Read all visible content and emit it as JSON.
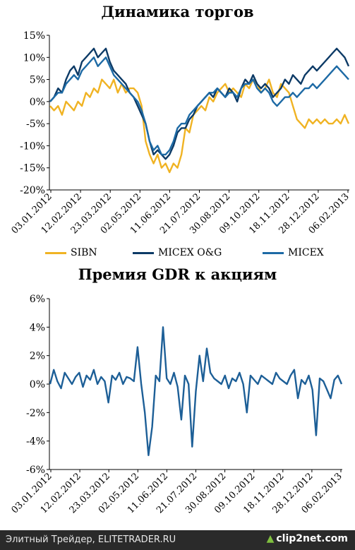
{
  "chart_data": [
    {
      "type": "line",
      "title": "Динамика торгов",
      "ylim": [
        -0.2,
        0.15
      ],
      "yticks": [
        "15%",
        "10%",
        "5%",
        "0%",
        "-5%",
        "-10%",
        "-15%",
        "-20%"
      ],
      "ytick_values": [
        0.15,
        0.1,
        0.05,
        0.0,
        -0.05,
        -0.1,
        -0.15,
        -0.2
      ],
      "xticks": [
        "03.01.2012",
        "12.02.2012",
        "23.03.2012",
        "02.05.2012",
        "11.06.2012",
        "21.07.2012",
        "30.08.2012",
        "09.10.2012",
        "18.11.2012",
        "28.12.2012",
        "06.02.2013"
      ],
      "legend_position": "bottom",
      "grid": false,
      "series": [
        {
          "name": "SIBN",
          "color": "#f0b323",
          "values": [
            -0.01,
            -0.02,
            -0.01,
            -0.03,
            0.0,
            -0.01,
            -0.02,
            0.0,
            -0.01,
            0.02,
            0.01,
            0.03,
            0.02,
            0.05,
            0.04,
            0.03,
            0.05,
            0.02,
            0.04,
            0.02,
            0.03,
            0.03,
            0.02,
            -0.01,
            -0.09,
            -0.12,
            -0.14,
            -0.12,
            -0.15,
            -0.14,
            -0.16,
            -0.14,
            -0.15,
            -0.12,
            -0.06,
            -0.07,
            -0.03,
            -0.02,
            -0.01,
            -0.02,
            0.01,
            0.0,
            0.02,
            0.03,
            0.04,
            0.02,
            0.03,
            0.02,
            0.01,
            0.04,
            0.03,
            0.05,
            0.04,
            0.02,
            0.03,
            0.05,
            0.02,
            0.01,
            0.04,
            0.03,
            0.02,
            -0.01,
            -0.04,
            -0.05,
            -0.06,
            -0.04,
            -0.05,
            -0.04,
            -0.05,
            -0.04,
            -0.05,
            -0.05,
            -0.04,
            -0.05,
            -0.03,
            -0.05
          ]
        },
        {
          "name": "MICEX O&G",
          "color": "#0c3a66",
          "values": [
            0.0,
            0.01,
            0.03,
            0.02,
            0.05,
            0.07,
            0.08,
            0.06,
            0.09,
            0.1,
            0.11,
            0.12,
            0.1,
            0.11,
            0.12,
            0.09,
            0.07,
            0.06,
            0.05,
            0.04,
            0.02,
            0.01,
            -0.01,
            -0.03,
            -0.05,
            -0.09,
            -0.12,
            -0.11,
            -0.12,
            -0.13,
            -0.12,
            -0.1,
            -0.07,
            -0.06,
            -0.06,
            -0.04,
            -0.03,
            -0.01,
            0.0,
            0.01,
            0.02,
            0.01,
            0.03,
            0.02,
            0.01,
            0.03,
            0.02,
            0.0,
            0.03,
            0.05,
            0.04,
            0.06,
            0.04,
            0.03,
            0.04,
            0.03,
            0.01,
            0.02,
            0.03,
            0.05,
            0.04,
            0.06,
            0.05,
            0.04,
            0.06,
            0.07,
            0.08,
            0.07,
            0.08,
            0.09,
            0.1,
            0.11,
            0.12,
            0.11,
            0.1,
            0.08
          ]
        },
        {
          "name": "MICEX",
          "color": "#1d6aa5",
          "values": [
            0.0,
            0.01,
            0.02,
            0.02,
            0.04,
            0.05,
            0.06,
            0.05,
            0.07,
            0.08,
            0.09,
            0.1,
            0.08,
            0.09,
            0.1,
            0.08,
            0.06,
            0.05,
            0.04,
            0.03,
            0.02,
            0.01,
            0.0,
            -0.02,
            -0.05,
            -0.09,
            -0.11,
            -0.1,
            -0.12,
            -0.12,
            -0.11,
            -0.09,
            -0.06,
            -0.05,
            -0.05,
            -0.03,
            -0.02,
            -0.01,
            0.0,
            0.01,
            0.02,
            0.02,
            0.03,
            0.02,
            0.01,
            0.02,
            0.02,
            0.01,
            0.03,
            0.04,
            0.04,
            0.05,
            0.03,
            0.02,
            0.03,
            0.02,
            0.0,
            -0.01,
            0.0,
            0.01,
            0.01,
            0.02,
            0.01,
            0.02,
            0.03,
            0.03,
            0.04,
            0.03,
            0.04,
            0.05,
            0.06,
            0.07,
            0.08,
            0.07,
            0.06,
            0.05
          ]
        }
      ]
    },
    {
      "type": "line",
      "title": "Премия GDR к акциям",
      "ylim": [
        -0.06,
        0.06
      ],
      "yticks": [
        "6%",
        "4%",
        "2%",
        "0%",
        "-2%",
        "-4%",
        "-6%"
      ],
      "ytick_values": [
        0.06,
        0.04,
        0.02,
        0.0,
        -0.02,
        -0.04,
        -0.06
      ],
      "xticks": [
        "03.01.2012",
        "12.02.2012",
        "23.03.2012",
        "02.05.2012",
        "11.06.2012",
        "21.07.2012",
        "30.08.2012",
        "09.10.2012",
        "18.11.2012",
        "28.12.2012",
        "06.02.2013"
      ],
      "grid": false,
      "series": [
        {
          "color": "#1d5f97",
          "values": [
            0.0,
            0.01,
            0.002,
            -0.003,
            0.008,
            0.004,
            0.0,
            0.005,
            0.008,
            -0.002,
            0.006,
            0.003,
            0.01,
            0.0,
            0.005,
            0.002,
            -0.013,
            0.006,
            0.003,
            0.008,
            0.0,
            0.005,
            0.004,
            0.002,
            0.026,
            0.0,
            -0.02,
            -0.05,
            -0.03,
            0.006,
            0.002,
            0.04,
            0.004,
            0.0,
            0.008,
            -0.002,
            -0.025,
            0.006,
            0.0,
            -0.044,
            -0.005,
            0.02,
            0.002,
            0.025,
            0.008,
            0.004,
            0.002,
            0.0,
            0.006,
            -0.003,
            0.004,
            0.002,
            0.008,
            0.0,
            -0.02,
            0.006,
            0.003,
            0.0,
            0.006,
            0.004,
            0.002,
            0.0,
            0.008,
            0.004,
            0.002,
            0.0,
            0.006,
            0.01,
            -0.01,
            0.003,
            0.0,
            0.006,
            -0.004,
            -0.036,
            0.004,
            0.002,
            -0.004,
            -0.01,
            0.003,
            0.006,
            0.0
          ]
        }
      ]
    }
  ],
  "footer": {
    "source": "Элитный Трейдер, ELITETRADER.RU",
    "logo": "clip2net.com"
  }
}
